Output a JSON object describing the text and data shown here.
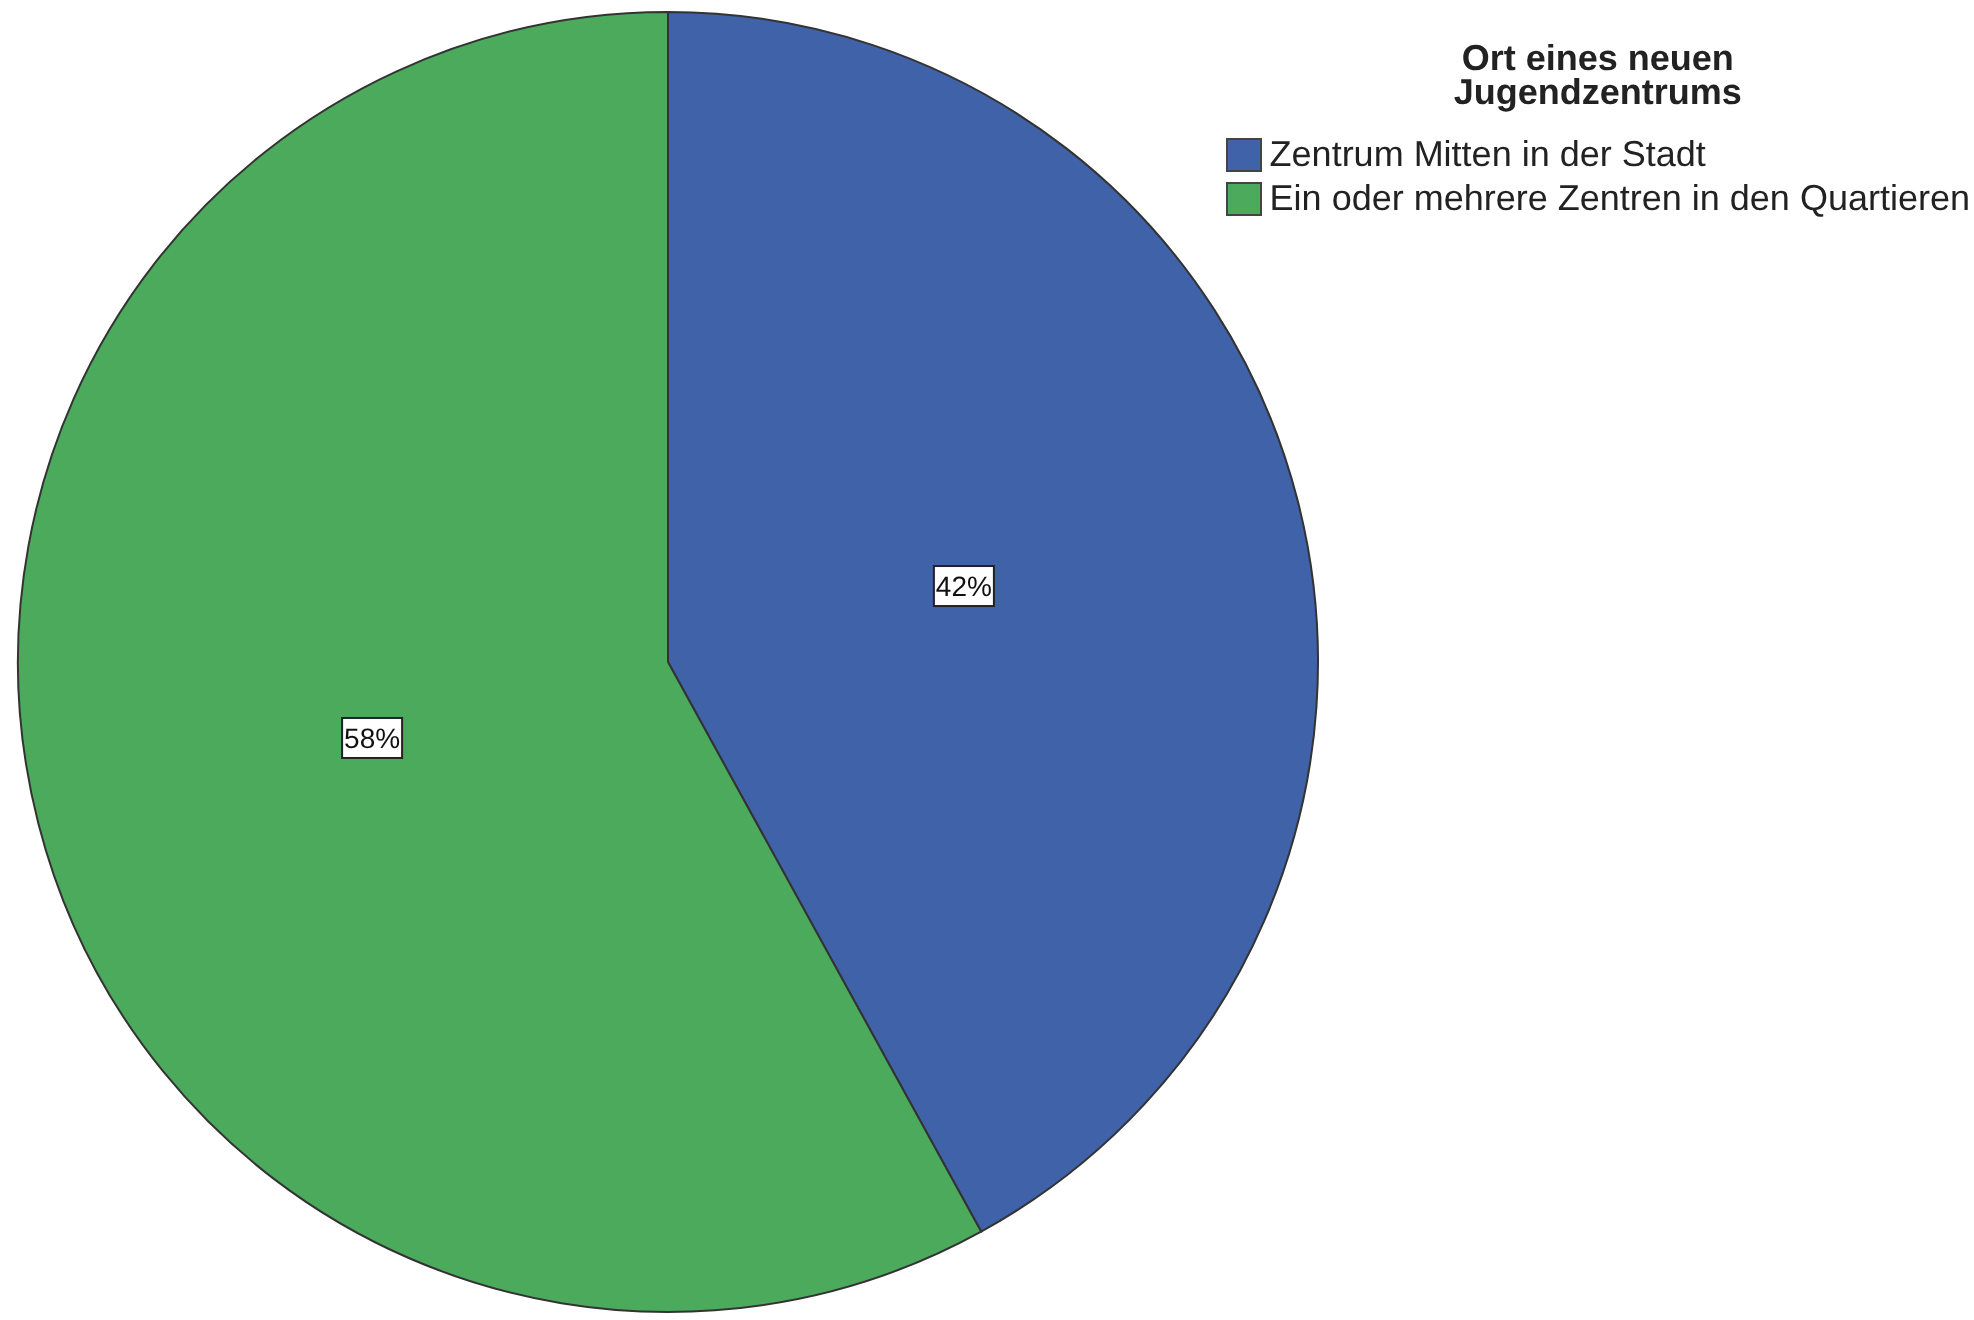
{
  "chart_data": {
    "type": "pie",
    "legend_title": "Ort eines neuen\nJugendzentrums",
    "categories": [
      "Zentrum Mitten in der Stadt",
      "Ein oder mehrere Zentren in den Quartieren"
    ],
    "values": [
      42,
      58
    ],
    "colors": [
      "#3f62a8",
      "#4caa5c"
    ],
    "value_labels": [
      "42%",
      "58%"
    ],
    "legend": "top right"
  }
}
